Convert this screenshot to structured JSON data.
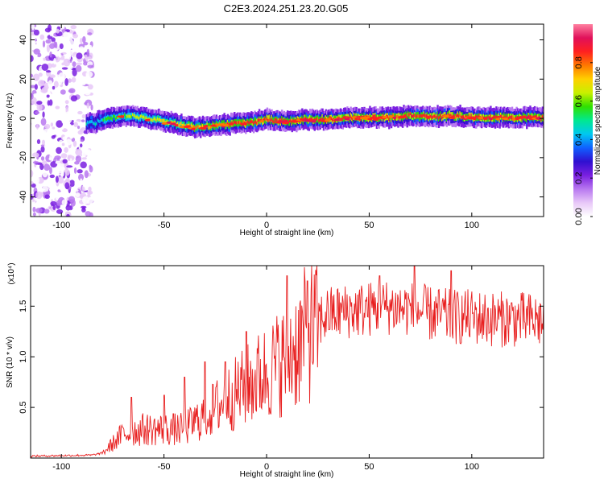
{
  "title": "C2E3.2024.251.23.20.G05",
  "chart_data": [
    {
      "type": "heatmap",
      "title": "",
      "xlabel": "Height of straight line (km)",
      "ylabel": "Frequency (Hz)",
      "xlim": [
        -115,
        135
      ],
      "ylim": [
        -50,
        48
      ],
      "xticks": [
        -100,
        -50,
        0,
        50,
        100
      ],
      "yticks": [
        -40,
        -20,
        0,
        20,
        40
      ],
      "colorbar": {
        "label": "Normalized spectral amplitude",
        "range": [
          0,
          1
        ],
        "ticks": [
          "0.00",
          "0.2",
          "0.4",
          "0.6",
          "0.8"
        ],
        "colors": [
          "#ffffff",
          "#e8c8f8",
          "#b878f0",
          "#7a1fe0",
          "#3010d0",
          "#1060ff",
          "#00c8f0",
          "#00e890",
          "#30e000",
          "#c8f000",
          "#ffd000",
          "#ff7800",
          "#ff2020",
          "#e0105a",
          "#ff80a0"
        ]
      },
      "ridge": {
        "x": [
          -85,
          -75,
          -65,
          -55,
          -45,
          -35,
          -25,
          -15,
          -5,
          0,
          10,
          20,
          30,
          40,
          50,
          60,
          70,
          80,
          90,
          100,
          110,
          120,
          130,
          135
        ],
        "y": [
          -3,
          0,
          1,
          -1,
          -3,
          -5,
          -4,
          -3,
          -2,
          -1,
          -2,
          -1,
          -1,
          0,
          0,
          0,
          1,
          0,
          1,
          0,
          0,
          0,
          0,
          0
        ]
      }
    },
    {
      "type": "line",
      "title": "",
      "xlabel": "Height of straight line (km)",
      "ylabel": "SNR (10 * v/v)",
      "scale_label": "(x10⁴)",
      "xlim": [
        -115,
        135
      ],
      "ylim": [
        0,
        1.9
      ],
      "xticks": [
        -100,
        -50,
        0,
        50,
        100
      ],
      "yticks": [
        0.5,
        1.0,
        1.5
      ],
      "ytick_labels": [
        "0.5",
        "1.0",
        "1.5"
      ],
      "color": "#e82020",
      "envelope": {
        "x": [
          -115,
          -85,
          -80,
          -75,
          -70,
          -60,
          -50,
          -40,
          -30,
          -20,
          -10,
          0,
          10,
          20,
          30,
          40,
          50,
          60,
          70,
          80,
          90,
          100,
          110,
          120,
          135
        ],
        "y": [
          0.02,
          0.03,
          0.05,
          0.15,
          0.25,
          0.3,
          0.3,
          0.3,
          0.45,
          0.6,
          0.75,
          0.9,
          1.05,
          1.3,
          1.45,
          1.48,
          1.5,
          1.52,
          1.5,
          1.45,
          1.42,
          1.42,
          1.4,
          1.4,
          1.38
        ]
      },
      "peaks": [
        {
          "x": -66,
          "y": 0.6
        },
        {
          "x": -50,
          "y": 0.62
        },
        {
          "x": -40,
          "y": 0.8
        },
        {
          "x": -30,
          "y": 0.95
        },
        {
          "x": -20,
          "y": 0.95
        },
        {
          "x": -10,
          "y": 1.25
        },
        {
          "x": 10,
          "y": 1.8
        },
        {
          "x": 20,
          "y": 1.75
        },
        {
          "x": 55,
          "y": 1.8
        },
        {
          "x": 72,
          "y": 1.9
        },
        {
          "x": 90,
          "y": 1.85
        }
      ]
    }
  ]
}
